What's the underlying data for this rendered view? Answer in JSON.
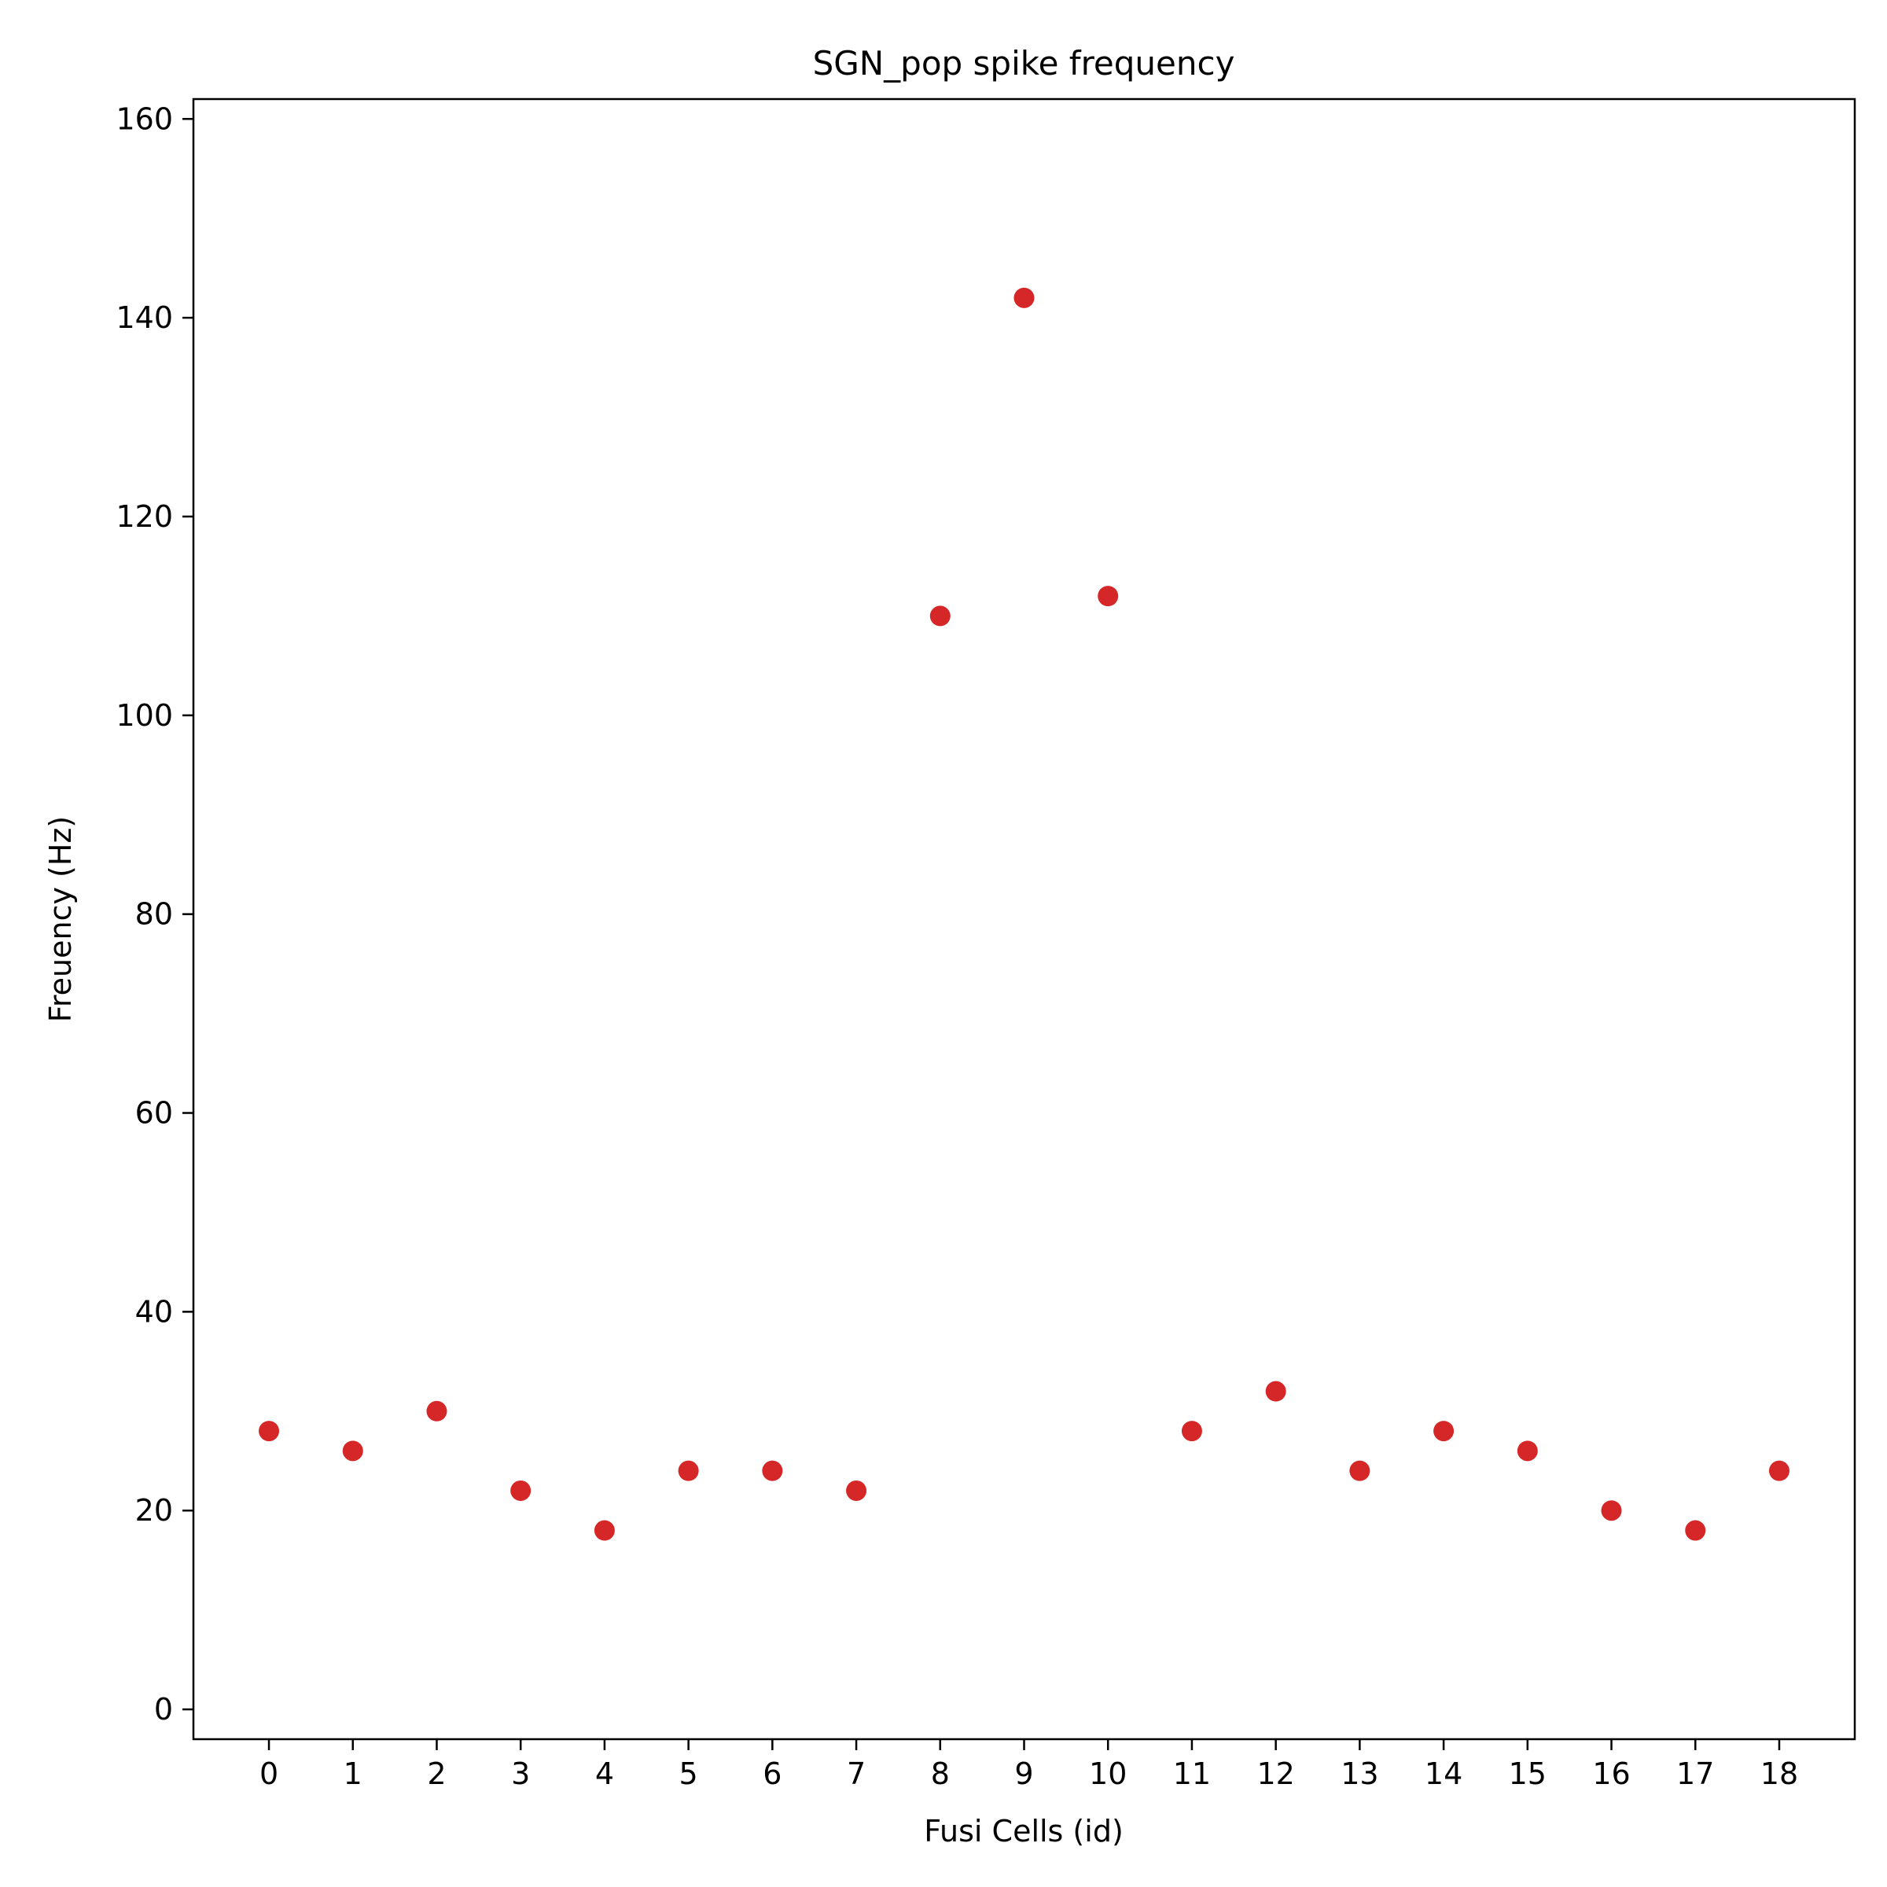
{
  "chart_data": {
    "type": "scatter",
    "title": "SGN_pop spike frequency",
    "xlabel": "Fusi Cells (id)",
    "ylabel": "Freuency (Hz)",
    "x": [
      0,
      1,
      2,
      3,
      4,
      5,
      6,
      7,
      8,
      9,
      10,
      11,
      12,
      13,
      14,
      15,
      16,
      17,
      18
    ],
    "y": [
      28,
      26,
      30,
      22,
      18,
      24,
      24,
      22,
      110,
      142,
      112,
      28,
      32,
      24,
      28,
      26,
      20,
      18,
      24
    ],
    "xticks": [
      "0",
      "1",
      "2",
      "3",
      "4",
      "5",
      "6",
      "7",
      "8",
      "9",
      "10",
      "11",
      "12",
      "13",
      "14",
      "15",
      "16",
      "17",
      "18"
    ],
    "yticks": [
      "0",
      "20",
      "40",
      "60",
      "80",
      "100",
      "120",
      "140",
      "160"
    ],
    "xlim": [
      -0.9,
      18.9
    ],
    "ylim": [
      -3,
      162
    ],
    "grid": false,
    "legend": false,
    "marker_color": "#d62728"
  }
}
